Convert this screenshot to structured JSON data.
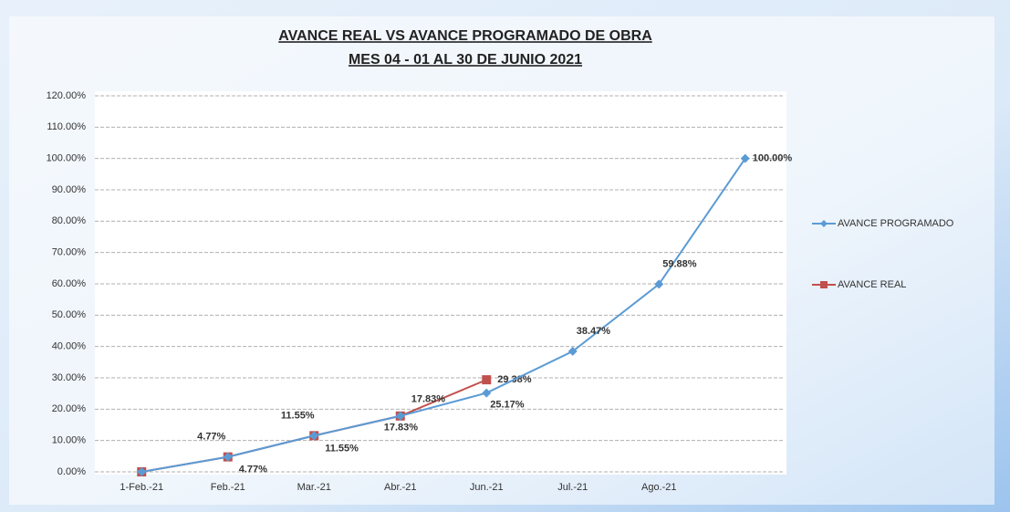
{
  "chart_data": {
    "type": "line",
    "title": "AVANCE REAL VS AVANCE PROGRAMADO DE OBRA",
    "subtitle": "MES 04 - 01 AL 30 DE JUNIO 2021",
    "categories": [
      "1-Feb.-21",
      "Feb.-21",
      "Mar.-21",
      "Abr.-21",
      "Jun.-21",
      "Jul.-21",
      "Ago.-21",
      null
    ],
    "series": [
      {
        "name": "AVANCE PROGRAMADO",
        "color": "#5b9bd5",
        "marker": "diamond",
        "values": [
          0,
          4.77,
          11.55,
          17.83,
          25.17,
          38.47,
          59.88,
          100.0
        ],
        "value_labels": [
          null,
          "4.77%",
          "11.55%",
          "17.83%",
          "25.17%",
          "38.47%",
          "59.88%",
          "100.00%"
        ],
        "label_color": "#e03030"
      },
      {
        "name": "AVANCE REAL",
        "color": "#c0504d",
        "marker": "square",
        "values": [
          0,
          4.77,
          11.55,
          17.83,
          29.38,
          null,
          null,
          null
        ],
        "value_labels": [
          null,
          "4.77%",
          "11.55%",
          "17.83%",
          "29.38%",
          null,
          null,
          null
        ],
        "label_color": "#222222"
      }
    ],
    "ylim": [
      0,
      120
    ],
    "yticks": [
      {
        "value": 0,
        "label": "0.00%"
      },
      {
        "value": 10,
        "label": "10.00%"
      },
      {
        "value": 20,
        "label": "20.00%"
      },
      {
        "value": 30,
        "label": "30.00%"
      },
      {
        "value": 40,
        "label": "40.00%"
      },
      {
        "value": 50,
        "label": "50.00%"
      },
      {
        "value": 60,
        "label": "60.00%"
      },
      {
        "value": 70,
        "label": "70.00%"
      },
      {
        "value": 80,
        "label": "80.00%"
      },
      {
        "value": 90,
        "label": "90.00%"
      },
      {
        "value": 100,
        "label": "100.00%"
      },
      {
        "value": 110,
        "label": "110.00%"
      },
      {
        "value": 120,
        "label": "120.00%"
      }
    ],
    "grid": true,
    "legend": "right"
  }
}
